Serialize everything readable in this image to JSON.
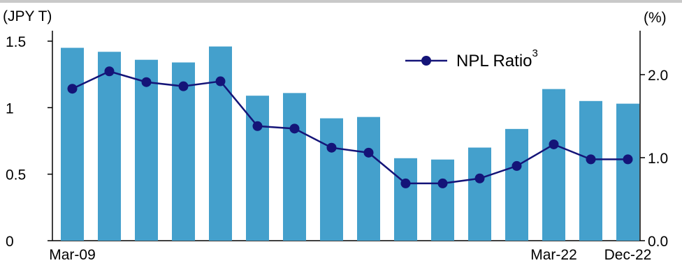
{
  "chart_data": {
    "type": "bar",
    "left_axis": {
      "unit_label": "(JPY T)",
      "ylim": [
        0,
        1.5
      ],
      "ticks": [
        0,
        0.5,
        1,
        1.5
      ],
      "tick_labels": [
        "0",
        "0.5",
        "1",
        "1.5"
      ]
    },
    "right_axis": {
      "unit_label": "(%)",
      "ylim": [
        0,
        2.3
      ],
      "ticks": [
        0,
        1,
        2
      ],
      "tick_labels": [
        "0.0",
        "1.0",
        "2.0"
      ]
    },
    "x_tick_labels": [
      {
        "index": 0,
        "label": "Mar-09"
      },
      {
        "index": 13,
        "label": "Mar-22"
      },
      {
        "index": 15,
        "label": "Dec-22"
      }
    ],
    "series": [
      {
        "type": "bar",
        "axis": "left",
        "color": "#44a0cc",
        "values": [
          1.45,
          1.42,
          1.36,
          1.34,
          1.46,
          1.09,
          1.11,
          0.92,
          0.93,
          0.62,
          0.61,
          0.7,
          0.84,
          1.14,
          1.05,
          1.03
        ]
      },
      {
        "type": "line",
        "axis": "right",
        "name": "NPL Ratio",
        "name_superscript": "3",
        "color": "#141478",
        "values": [
          1.83,
          2.04,
          1.91,
          1.86,
          1.92,
          1.38,
          1.35,
          1.12,
          1.06,
          0.69,
          0.69,
          0.75,
          0.9,
          1.16,
          0.98,
          0.98
        ]
      }
    ],
    "legend": {
      "position": "top-right"
    },
    "grid": false
  }
}
